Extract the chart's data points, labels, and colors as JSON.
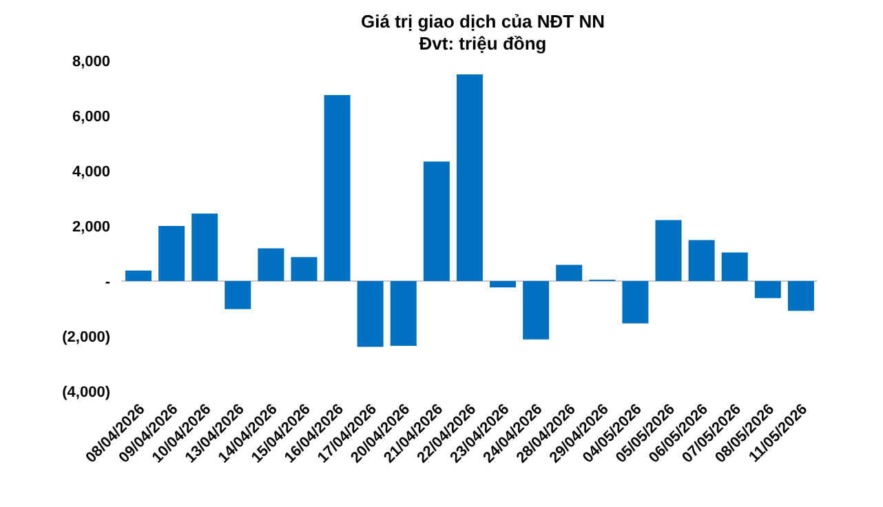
{
  "chart_data": {
    "type": "bar",
    "title": "Giá trị giao dịch của NĐT NN",
    "subtitle": "Đvt: triệu đồng",
    "categories": [
      "08/04/2026",
      "09/04/2026",
      "10/04/2026",
      "13/04/2026",
      "14/04/2026",
      "15/04/2026",
      "16/04/2026",
      "17/04/2026",
      "20/04/2026",
      "21/04/2026",
      "22/04/2026",
      "23/04/2026",
      "24/04/2026",
      "28/04/2026",
      "29/04/2026",
      "04/05/2026",
      "05/05/2026",
      "06/05/2026",
      "07/05/2026",
      "08/05/2026",
      "11/05/2026"
    ],
    "values": [
      380,
      2000,
      2450,
      -1020,
      1190,
      870,
      6750,
      -2390,
      -2350,
      4340,
      7500,
      -230,
      -2120,
      590,
      50,
      -1540,
      2210,
      1490,
      1040,
      -620,
      -1080
    ],
    "color": "#0070c0",
    "ylim": [
      -4000,
      8000
    ],
    "yticks": [
      {
        "value": -4000,
        "label": "(4,000)"
      },
      {
        "value": -2000,
        "label": "(2,000)"
      },
      {
        "value": 0,
        "label": "-"
      },
      {
        "value": 2000,
        "label": "2,000"
      },
      {
        "value": 4000,
        "label": "4,000"
      },
      {
        "value": 6000,
        "label": "6,000"
      },
      {
        "value": 8000,
        "label": "8,000"
      }
    ],
    "ref_lines": [
      {
        "axis": "y",
        "value": 0,
        "color": "#c8c8c8"
      }
    ],
    "grid": false,
    "legend": false
  }
}
